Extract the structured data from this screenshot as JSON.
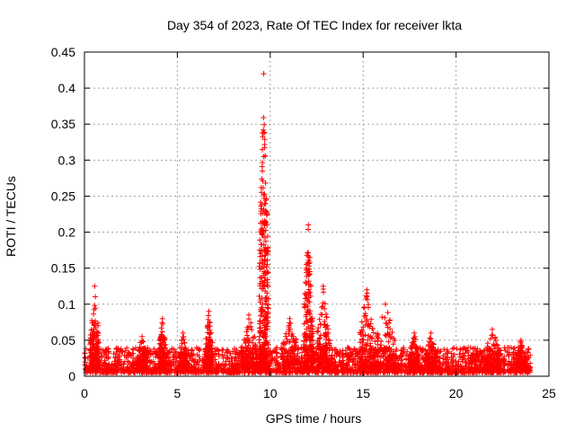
{
  "chart_data": {
    "type": "scatter",
    "title": "Day 354 of 2023, Rate Of TEC Index for receiver lkta",
    "xlabel": "GPS time / hours",
    "ylabel": "ROTI / TECUs",
    "xlim": [
      0,
      25
    ],
    "ylim": [
      0,
      0.45
    ],
    "x_ticks": [
      0,
      5,
      10,
      15,
      20,
      25
    ],
    "y_ticks": [
      0,
      0.05,
      0.1,
      0.15,
      0.2,
      0.25,
      0.3,
      0.35,
      0.4,
      0.45
    ],
    "x_tick_labels": [
      "0",
      "5",
      "10",
      "15",
      "20",
      "25"
    ],
    "y_tick_labels": [
      "0",
      "0.05",
      "0.1",
      "0.15",
      "0.2",
      "0.25",
      "0.3",
      "0.35",
      "0.4",
      "0.45"
    ],
    "grid": true,
    "marker": "+",
    "marker_color": "#ff0000",
    "series": [
      {
        "name": "ROTI",
        "baseline_band": {
          "x_range": [
            0,
            24
          ],
          "y_range": [
            0.005,
            0.04
          ]
        },
        "bursts": [
          {
            "x_range": [
              0.3,
              0.8
            ],
            "y_peak": 0.125
          },
          {
            "x_range": [
              2.8,
              3.4
            ],
            "y_peak": 0.055
          },
          {
            "x_range": [
              4.0,
              4.4
            ],
            "y_peak": 0.08
          },
          {
            "x_range": [
              5.1,
              5.5
            ],
            "y_peak": 0.06
          },
          {
            "x_range": [
              6.5,
              6.9
            ],
            "y_peak": 0.09
          },
          {
            "x_range": [
              8.4,
              9.3
            ],
            "y_peak": 0.085
          },
          {
            "x_range": [
              9.4,
              9.9
            ],
            "y_peak": 0.42
          },
          {
            "x_range": [
              10.6,
              11.5
            ],
            "y_peak": 0.08
          },
          {
            "x_range": [
              11.8,
              12.3
            ],
            "y_peak": 0.21
          },
          {
            "x_range": [
              12.5,
              13.2
            ],
            "y_peak": 0.125
          },
          {
            "x_range": [
              14.8,
              15.6
            ],
            "y_peak": 0.12
          },
          {
            "x_range": [
              15.6,
              16.8
            ],
            "y_peak": 0.1
          },
          {
            "x_range": [
              17.5,
              18.0
            ],
            "y_peak": 0.06
          },
          {
            "x_range": [
              18.4,
              18.9
            ],
            "y_peak": 0.06
          },
          {
            "x_range": [
              21.5,
              22.4
            ],
            "y_peak": 0.065
          },
          {
            "x_range": [
              23.2,
              23.8
            ],
            "y_peak": 0.05
          }
        ]
      }
    ]
  }
}
